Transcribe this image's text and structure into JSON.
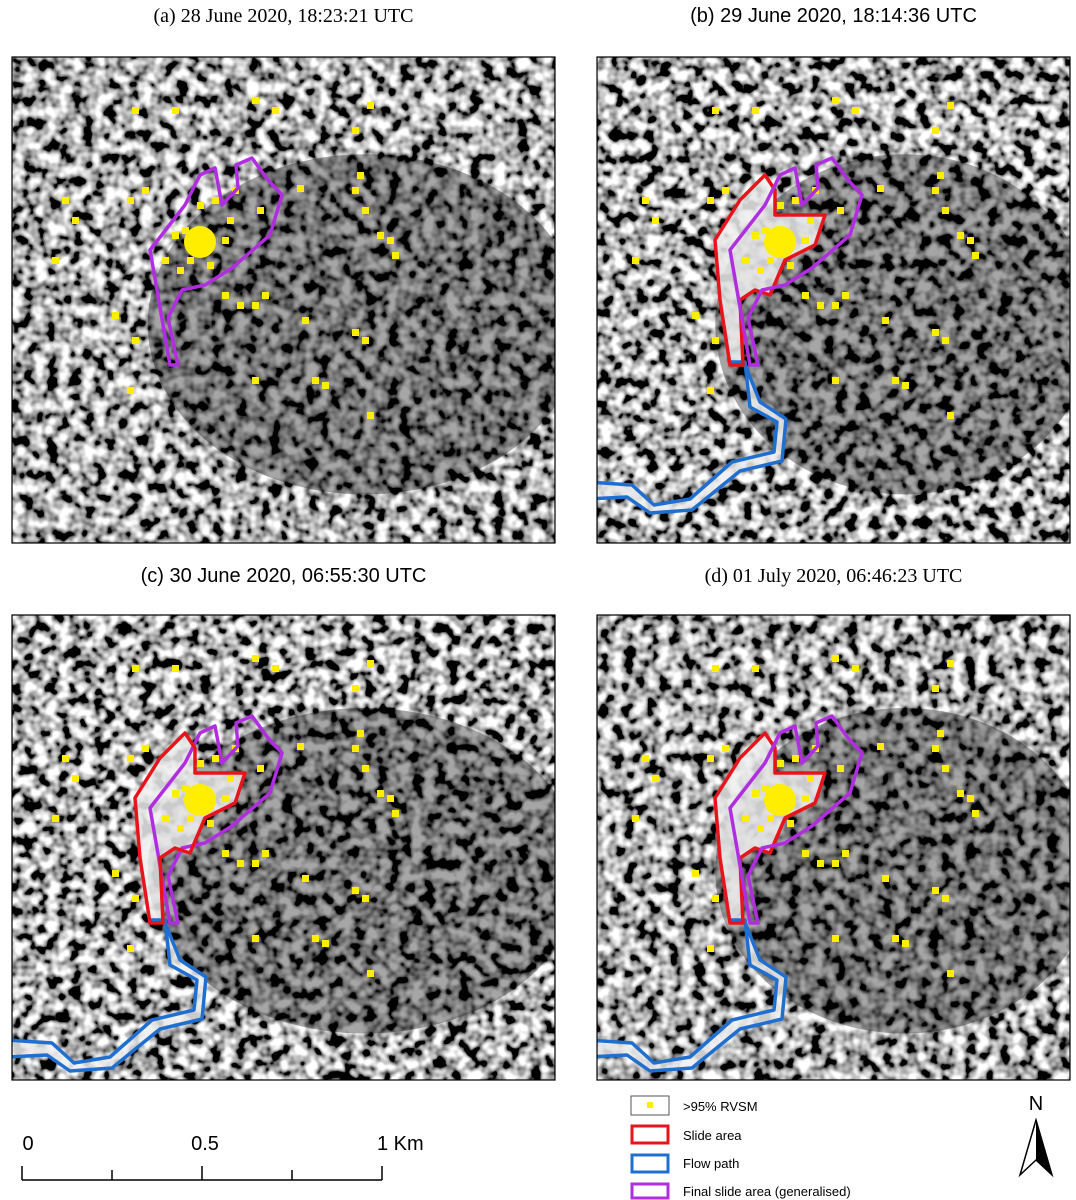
{
  "panels": [
    {
      "title": "(a) 28 June 2020, 18:23:21 UTC"
    },
    {
      "title": "(b) 29 June 2020, 18:14:36 UTC"
    },
    {
      "title": "(c) 30 June 2020, 06:55:30 UTC"
    },
    {
      "title": "(d) 01 July 2020, 06:46:23 UTC"
    }
  ],
  "scale_bar": {
    "labels": [
      "0",
      "0.5",
      "1 Km"
    ]
  },
  "legend": {
    "items": [
      ">95% RVSM",
      "Slide area",
      "Flow path",
      "Final slide area (generalised)"
    ]
  },
  "north_arrow": {
    "label": "N"
  }
}
